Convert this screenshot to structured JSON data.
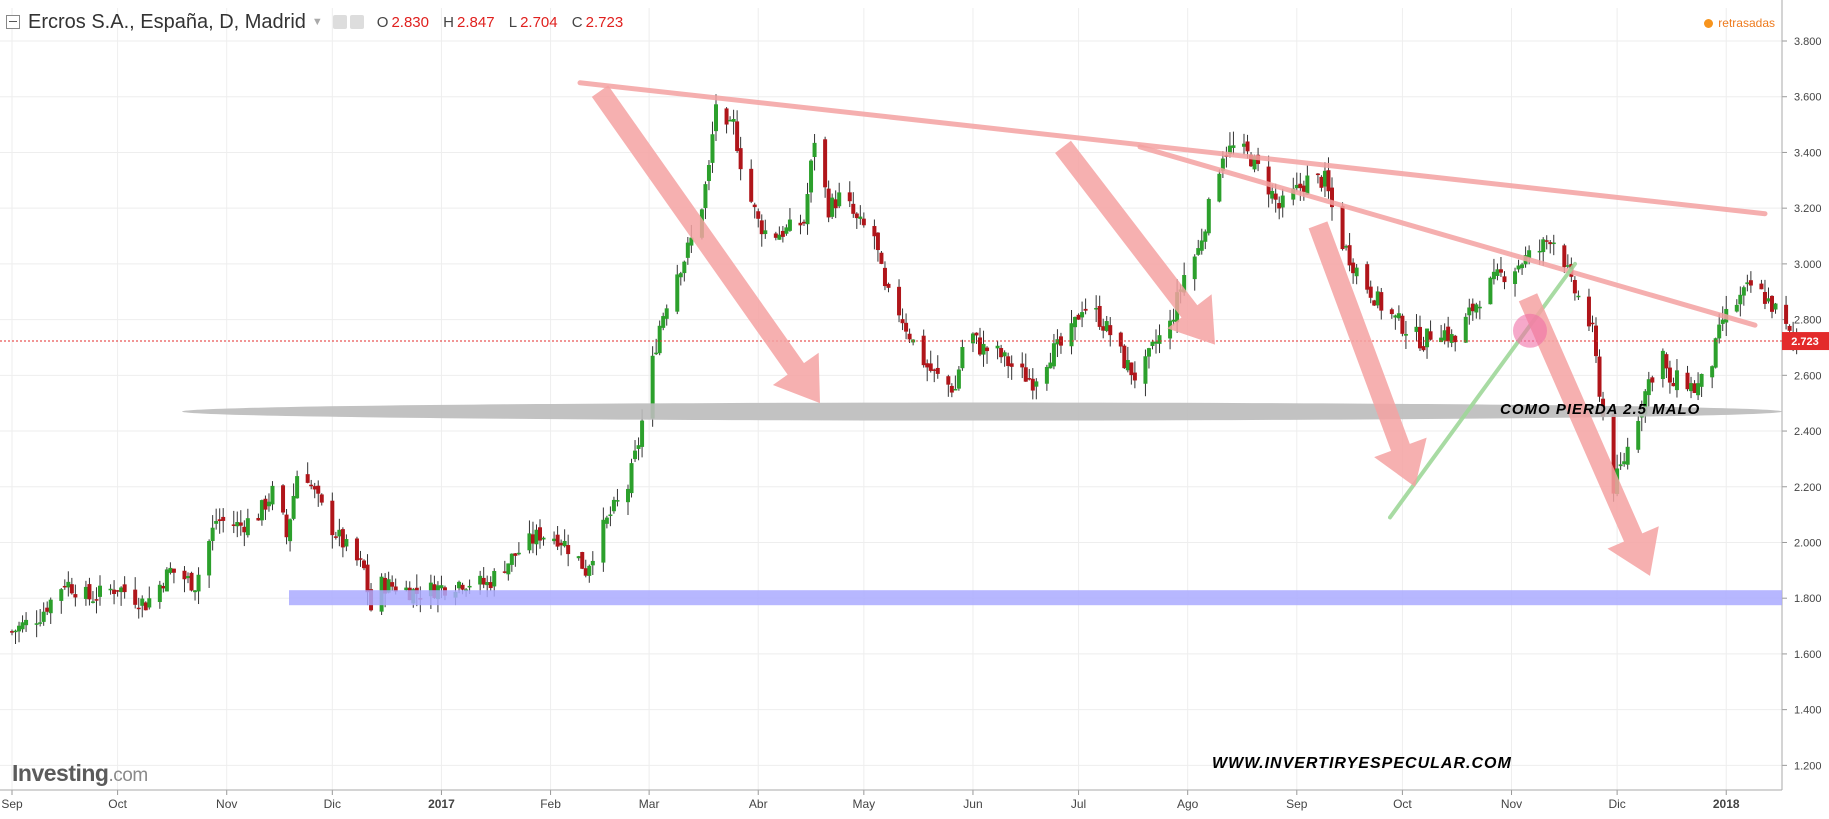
{
  "header": {
    "title": "Ercros S.A., España, D, Madrid",
    "ohlc": {
      "o_label": "O",
      "o": "2.830",
      "h_label": "H",
      "h": "2.847",
      "l_label": "L",
      "l": "2.704",
      "c_label": "C",
      "c": "2.723"
    },
    "status": "retrasadas"
  },
  "logo": {
    "main": "Investing",
    "suffix": ".com"
  },
  "colors": {
    "up": "#2ca02c",
    "down": "#b0151a",
    "price_line": "#e32b2b",
    "trend": "#f4a2a2",
    "support": "#aaaaff",
    "zone": "#bbbbbb",
    "uptrend": "#9fd89a"
  },
  "chart_data": {
    "type": "candlestick",
    "title": "Ercros S.A., España, D, Madrid",
    "x_ticks": [
      "Sep",
      "Oct",
      "Nov",
      "Dic",
      "2017",
      "Feb",
      "Mar",
      "Abr",
      "May",
      "Jun",
      "Jul",
      "Ago",
      "Sep",
      "Oct",
      "Nov",
      "Dic",
      "2018"
    ],
    "y_ticks": [
      "3.800",
      "3.600",
      "3.400",
      "3.200",
      "3.000",
      "2.800",
      "2.600",
      "2.400",
      "2.200",
      "2.000",
      "1.800",
      "1.600",
      "1.400",
      "1.200"
    ],
    "ylim": [
      1.1,
      3.87
    ],
    "last_price": 2.723,
    "last_price_label": "2.723",
    "close_path": [
      [
        0,
        1.68
      ],
      [
        8,
        1.74
      ],
      [
        15,
        1.86
      ],
      [
        22,
        1.8
      ],
      [
        30,
        1.84
      ],
      [
        38,
        1.78
      ],
      [
        45,
        1.9
      ],
      [
        52,
        1.85
      ],
      [
        58,
        2.08
      ],
      [
        65,
        2.06
      ],
      [
        70,
        2.1
      ],
      [
        75,
        2.2
      ],
      [
        78,
        2.02
      ],
      [
        82,
        2.32
      ],
      [
        85,
        2.2
      ],
      [
        90,
        2.07
      ],
      [
        95,
        1.98
      ],
      [
        100,
        1.9
      ],
      [
        102,
        1.76
      ],
      [
        105,
        1.85
      ],
      [
        110,
        1.84
      ],
      [
        115,
        1.82
      ],
      [
        122,
        1.84
      ],
      [
        128,
        1.86
      ],
      [
        135,
        1.85
      ],
      [
        140,
        1.92
      ],
      [
        145,
        1.98
      ],
      [
        150,
        2.03
      ],
      [
        155,
        2.02
      ],
      [
        160,
        1.96
      ],
      [
        163,
        1.9
      ],
      [
        166,
        2.0
      ],
      [
        170,
        2.1
      ],
      [
        175,
        2.2
      ],
      [
        178,
        2.36
      ],
      [
        181,
        2.58
      ],
      [
        184,
        2.78
      ],
      [
        188,
        2.95
      ],
      [
        191,
        3.02
      ],
      [
        195,
        3.15
      ],
      [
        198,
        3.34
      ],
      [
        200,
        3.58
      ],
      [
        202,
        3.45
      ],
      [
        205,
        3.5
      ],
      [
        208,
        3.3
      ],
      [
        212,
        3.15
      ],
      [
        215,
        3.1
      ],
      [
        220,
        3.12
      ],
      [
        225,
        3.15
      ],
      [
        228,
        3.45
      ],
      [
        232,
        3.2
      ],
      [
        236,
        3.25
      ],
      [
        240,
        3.15
      ],
      [
        245,
        3.1
      ],
      [
        248,
        2.9
      ],
      [
        252,
        2.83
      ],
      [
        256,
        2.72
      ],
      [
        260,
        2.63
      ],
      [
        264,
        2.58
      ],
      [
        268,
        2.55
      ],
      [
        271,
        2.78
      ],
      [
        275,
        2.7
      ],
      [
        280,
        2.68
      ],
      [
        285,
        2.62
      ],
      [
        290,
        2.58
      ],
      [
        295,
        2.68
      ],
      [
        300,
        2.72
      ],
      [
        304,
        2.85
      ],
      [
        308,
        2.82
      ],
      [
        312,
        2.75
      ],
      [
        316,
        2.65
      ],
      [
        320,
        2.58
      ],
      [
        325,
        2.72
      ],
      [
        329,
        2.78
      ],
      [
        333,
        2.96
      ],
      [
        337,
        3.05
      ],
      [
        340,
        3.2
      ],
      [
        344,
        3.4
      ],
      [
        348,
        3.42
      ],
      [
        352,
        3.38
      ],
      [
        356,
        3.3
      ],
      [
        360,
        3.2
      ],
      [
        364,
        3.25
      ],
      [
        368,
        3.3
      ],
      [
        373,
        3.3
      ],
      [
        377,
        3.1
      ],
      [
        381,
        3.0
      ],
      [
        385,
        2.92
      ],
      [
        389,
        2.85
      ],
      [
        393,
        2.8
      ],
      [
        397,
        2.76
      ],
      [
        401,
        2.72
      ],
      [
        405,
        2.78
      ],
      [
        410,
        2.72
      ],
      [
        414,
        2.82
      ],
      [
        418,
        2.9
      ],
      [
        422,
        2.95
      ],
      [
        426,
        2.98
      ],
      [
        430,
        3.02
      ],
      [
        434,
        3.05
      ],
      [
        437,
        3.1
      ],
      [
        440,
        3.06
      ],
      [
        443,
        2.92
      ],
      [
        446,
        2.86
      ],
      [
        449,
        2.75
      ],
      [
        451,
        2.55
      ],
      [
        453,
        2.35
      ],
      [
        455,
        2.2
      ],
      [
        458,
        2.3
      ],
      [
        461,
        2.42
      ],
      [
        465,
        2.58
      ],
      [
        469,
        2.68
      ],
      [
        471,
        2.55
      ],
      [
        474,
        2.6
      ],
      [
        478,
        2.55
      ],
      [
        482,
        2.6
      ],
      [
        486,
        2.8
      ],
      [
        490,
        2.86
      ],
      [
        494,
        2.92
      ],
      [
        498,
        2.88
      ],
      [
        502,
        2.82
      ],
      [
        505,
        2.74
      ],
      [
        507,
        2.723
      ]
    ],
    "annotations": [
      "COMO PIERDA 2.5 MALO",
      "WWW.INVERTIRYESPECULAR.COM"
    ]
  }
}
